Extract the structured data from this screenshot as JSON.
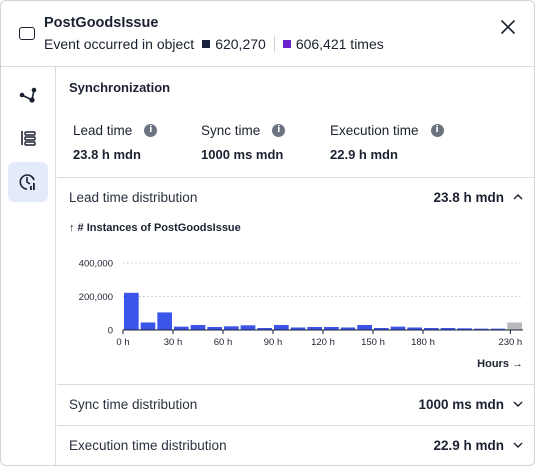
{
  "header": {
    "title": "PostGoodsIssue",
    "subtitle": "Event occurred in object",
    "object_count": "620,270",
    "times_count": "606,421 times",
    "colors": {
      "objects": "#1b2340",
      "times": "#6b21c8"
    }
  },
  "sidebar": {
    "items": [
      {
        "name": "graph-icon"
      },
      {
        "name": "list-icon"
      },
      {
        "name": "clock-chart-icon",
        "active": true
      }
    ]
  },
  "main": {
    "section_title": "Synchronization",
    "metrics": [
      {
        "label": "Lead time",
        "value": "23.8 h mdn"
      },
      {
        "label": "Sync time",
        "value": "1000 ms mdn"
      },
      {
        "label": "Execution time",
        "value": "22.9 h mdn"
      }
    ],
    "info_glyph": "i",
    "lead_dist": {
      "label": "Lead time distribution",
      "value": "23.8 h mdn"
    },
    "sync_dist": {
      "label": "Sync time distribution",
      "value": "1000 ms mdn"
    },
    "exec_dist": {
      "label": "Execution time distribution",
      "value": "22.9 h mdn"
    },
    "chart_title": "↑ # Instances of PostGoodsIssue",
    "hours_label": "Hours →"
  },
  "chart_data": {
    "type": "bar",
    "ylabel": "# Instances of PostGoodsIssue",
    "xlabel": "Hours",
    "ylim": [
      0,
      400000
    ],
    "y_ticks": [
      {
        "value": 0,
        "label": "0"
      },
      {
        "value": 200000,
        "label": "200,000"
      },
      {
        "value": 400000,
        "label": "400,000"
      }
    ],
    "x_ticks": [
      {
        "value": 0,
        "label": "0 h"
      },
      {
        "value": 30,
        "label": "30 h"
      },
      {
        "value": 60,
        "label": "60 h"
      },
      {
        "value": 90,
        "label": "90 h"
      },
      {
        "value": 120,
        "label": "120 h"
      },
      {
        "value": 150,
        "label": "150 h"
      },
      {
        "value": 180,
        "label": "180 h"
      },
      {
        "value": 230,
        "label": "230 h"
      }
    ],
    "bin_width_h": 10,
    "bins_start_h": [
      0,
      10,
      20,
      30,
      40,
      50,
      60,
      70,
      80,
      90,
      100,
      110,
      120,
      130,
      140,
      150,
      160,
      170,
      180,
      190,
      200,
      210,
      220,
      230
    ],
    "values": [
      222000,
      45000,
      105000,
      20000,
      30000,
      18000,
      22000,
      28000,
      12000,
      30000,
      15000,
      18000,
      18000,
      15000,
      30000,
      12000,
      20000,
      15000,
      12000,
      12000,
      10000,
      8000,
      8000,
      45000
    ],
    "overflow_last_bin": true,
    "grid": true,
    "colors": {
      "bar": "#3b54ea",
      "overflow": "#b7b9bf"
    }
  }
}
